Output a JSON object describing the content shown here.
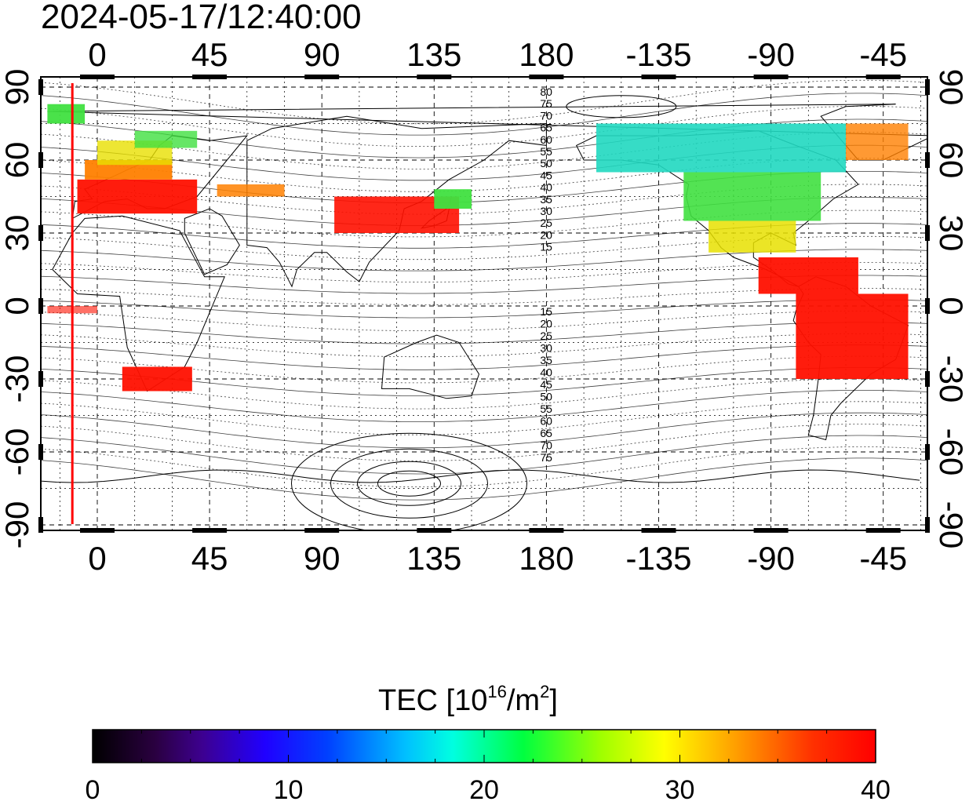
{
  "timestamp": "2024-05-17/12:40:00",
  "map": {
    "longitude_ticks": [
      "0",
      "45",
      "90",
      "135",
      "180",
      "-135",
      "-90",
      "-45"
    ],
    "latitude_ticks": [
      "90",
      "60",
      "30",
      "0",
      "-30",
      "-60",
      "-90"
    ],
    "contour_labels_north": [
      "80",
      "75",
      "70",
      "65",
      "60",
      "55",
      "50",
      "45",
      "40",
      "35",
      "30",
      "25",
      "20",
      "15"
    ],
    "contour_labels_south": [
      "15",
      "20",
      "25",
      "30",
      "35",
      "40",
      "45",
      "50",
      "55",
      "60",
      "65",
      "70",
      "75"
    ],
    "terminator_color": "#ff0000",
    "marker_longitude": -10
  },
  "colorbar": {
    "title": "TEC  [10",
    "title_exponent": "16",
    "title_unit": "/m",
    "title_unit_exponent": "2",
    "title_close": "]",
    "tick_labels": [
      "0",
      "10",
      "20",
      "30",
      "40"
    ],
    "range": [
      0,
      40
    ]
  }
}
